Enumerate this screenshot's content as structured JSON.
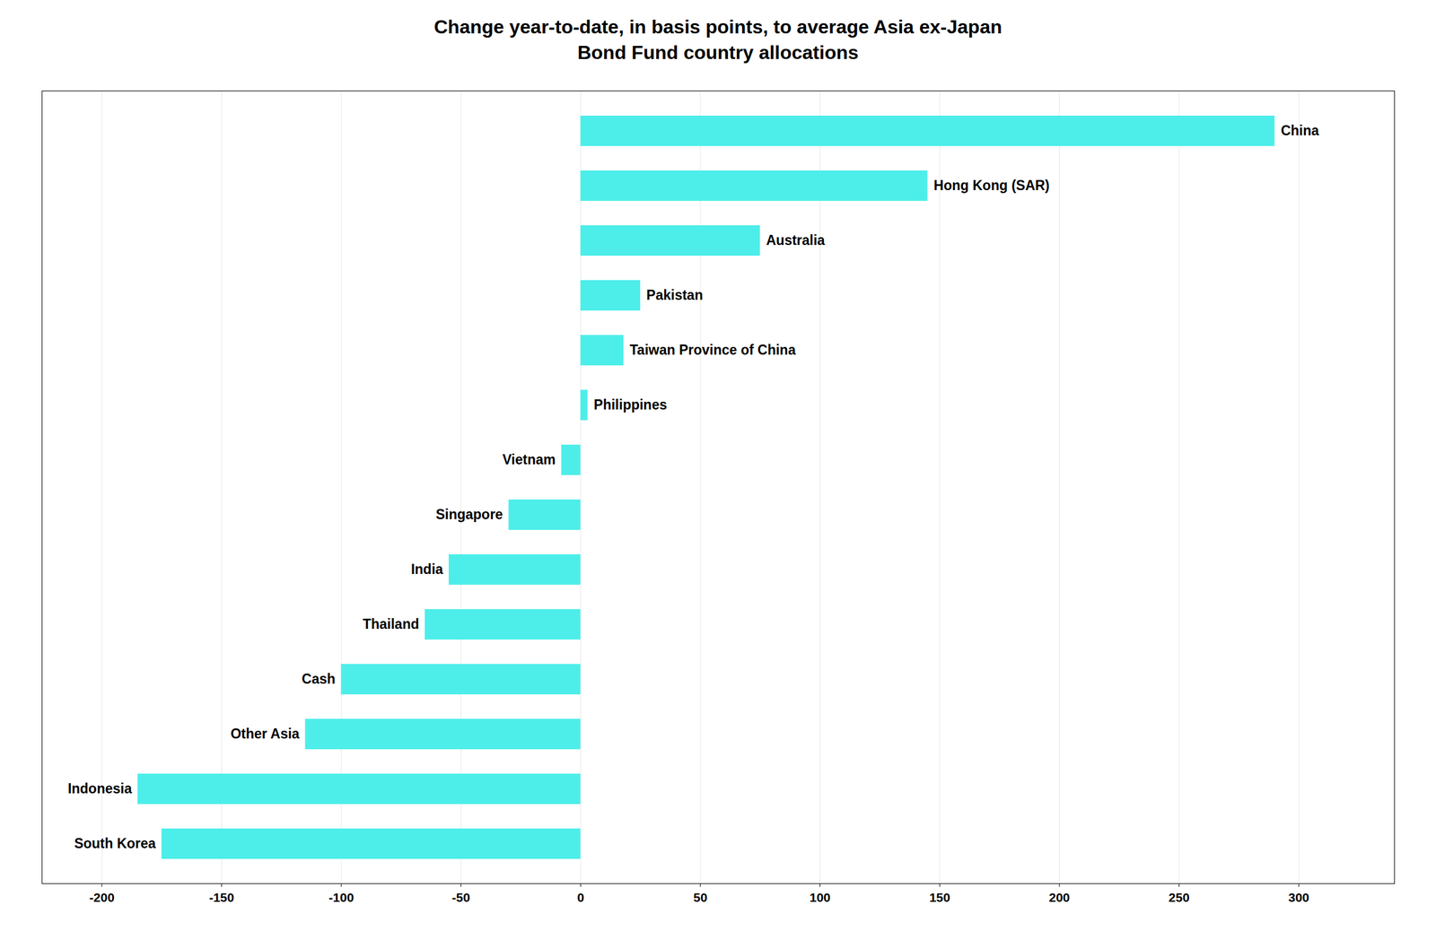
{
  "chart_data": {
    "type": "bar",
    "title": "Change year-to-date, in basis points, to average Asia ex-Japan\nBond Fund country allocations",
    "categories": [
      "South Korea",
      "Indonesia",
      "Other Asia",
      "Cash",
      "Thailand",
      "India",
      "Singapore",
      "Vietnam",
      "Philippines",
      "Taiwan Province of China",
      "Pakistan",
      "Australia",
      "Hong Kong (SAR)",
      "China"
    ],
    "values": [
      -175,
      -185,
      -115,
      -100,
      -65,
      -55,
      -30,
      -8,
      3,
      18,
      25,
      75,
      145,
      290
    ],
    "color": "#4DEEEA",
    "orientation": "horizontal",
    "xlim": [
      -225,
      340
    ],
    "xticks": [
      -200,
      -150,
      -100,
      -50,
      0,
      50,
      100,
      150,
      200,
      250,
      300
    ],
    "grid": true,
    "tick_labels": "x"
  }
}
